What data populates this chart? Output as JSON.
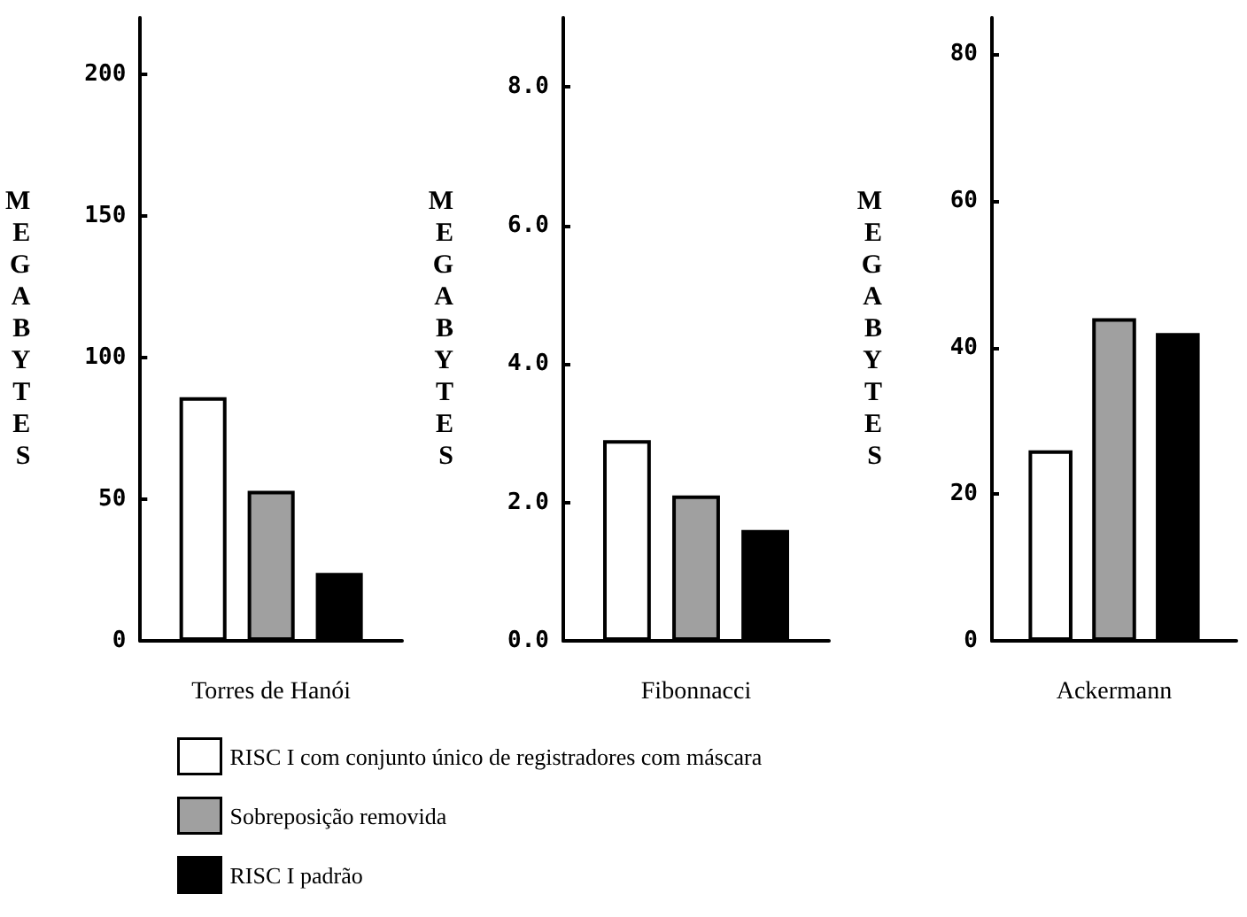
{
  "chart_data": [
    {
      "type": "bar",
      "categories": [
        "Torres de Hanói"
      ],
      "ylabel": "MEGABYTES",
      "ylim": [
        0,
        220
      ],
      "yticks": [
        0,
        50,
        100,
        150,
        200
      ],
      "legend": "bottom",
      "series": [
        {
          "name": "RISC I com conjunto único de registradores com máscara",
          "color": "#ffffff",
          "values": [
            86
          ]
        },
        {
          "name": "Sobreposição removida",
          "color": "#a0a0a0",
          "values": [
            53
          ]
        },
        {
          "name": "RISC I padrão",
          "color": "#000000",
          "values": [
            24
          ]
        }
      ]
    },
    {
      "type": "bar",
      "categories": [
        "Fibonnacci"
      ],
      "ylabel": "MEGABYTES",
      "ylim": [
        0,
        9
      ],
      "yticks": [
        {
          "value": 0,
          "label": "0.0"
        },
        {
          "value": 2,
          "label": "2.0"
        },
        {
          "value": 4,
          "label": "4.0"
        },
        {
          "value": 6,
          "label": "6.0"
        },
        {
          "value": 8,
          "label": "8.0"
        }
      ],
      "series": [
        {
          "color": "#ffffff",
          "values": [
            2.9
          ]
        },
        {
          "color": "#a0a0a0",
          "values": [
            2.1
          ]
        },
        {
          "color": "#000000",
          "values": [
            1.6
          ]
        }
      ]
    },
    {
      "type": "bar",
      "categories": [
        "Ackermann"
      ],
      "ylabel": "MEGABYTES",
      "ylim": [
        0,
        85
      ],
      "yticks": [
        0,
        20,
        40,
        60,
        80
      ],
      "series": [
        {
          "color": "#ffffff",
          "values": [
            26
          ]
        },
        {
          "color": "#a0a0a0",
          "values": [
            44
          ]
        },
        {
          "color": "#000000",
          "values": [
            42
          ]
        }
      ]
    }
  ]
}
